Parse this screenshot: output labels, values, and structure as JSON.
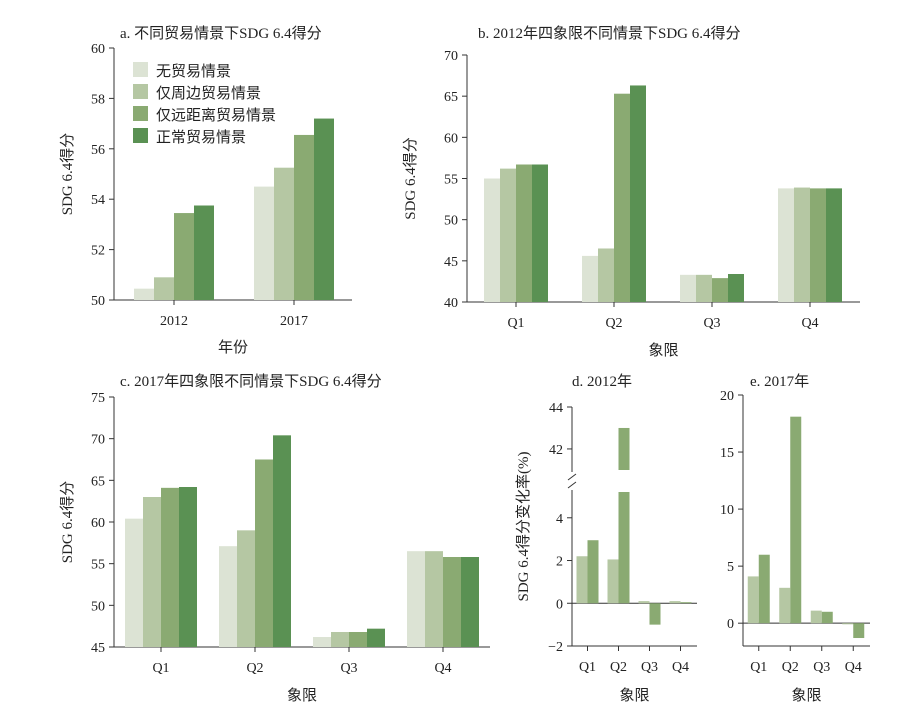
{
  "colors": [
    "#dce3d4",
    "#b5c7a3",
    "#8aaa72",
    "#5a9153"
  ],
  "chart_data": [
    {
      "id": "a",
      "type": "bar",
      "title": "a. 不同贸易情景下SDG 6.4得分",
      "xlabel": "年份",
      "ylabel": "SDG 6.4得分",
      "ylim": [
        50,
        60
      ],
      "yticks": [
        50,
        52,
        54,
        56,
        58,
        60
      ],
      "categories": [
        "2012",
        "2017"
      ],
      "legend": {
        "placement": "top-left",
        "entries": [
          "无贸易情景",
          "仅周边贸易情景",
          "仅远距离贸易情景",
          "正常贸易情景"
        ]
      },
      "series": [
        {
          "name": "无贸易情景",
          "values": [
            50.45,
            54.5
          ]
        },
        {
          "name": "仅周边贸易情景",
          "values": [
            50.9,
            55.25
          ]
        },
        {
          "name": "仅远距离贸易情景",
          "values": [
            53.45,
            56.55
          ]
        },
        {
          "name": "正常贸易情景",
          "values": [
            53.75,
            57.2
          ]
        }
      ]
    },
    {
      "id": "b",
      "type": "bar",
      "title": "b. 2012年四象限不同情景下SDG 6.4得分",
      "xlabel": "象限",
      "ylabel": "SDG 6.4得分",
      "ylim": [
        40,
        70
      ],
      "yticks": [
        40,
        45,
        50,
        55,
        60,
        65,
        70
      ],
      "categories": [
        "Q1",
        "Q2",
        "Q3",
        "Q4"
      ],
      "series": [
        {
          "name": "无贸易情景",
          "values": [
            55.0,
            45.6,
            43.3,
            53.8
          ]
        },
        {
          "name": "仅周边贸易情景",
          "values": [
            56.2,
            46.5,
            43.3,
            53.9
          ]
        },
        {
          "name": "仅远距离贸易情景",
          "values": [
            56.7,
            65.3,
            42.9,
            53.8
          ]
        },
        {
          "name": "正常贸易情景",
          "values": [
            56.7,
            66.3,
            43.4,
            53.8
          ]
        }
      ]
    },
    {
      "id": "c",
      "type": "bar",
      "title": "c. 2017年四象限不同情景下SDG 6.4得分",
      "xlabel": "象限",
      "ylabel": "SDG 6.4得分",
      "ylim": [
        45,
        75
      ],
      "yticks": [
        45,
        50,
        55,
        60,
        65,
        70,
        75
      ],
      "categories": [
        "Q1",
        "Q2",
        "Q3",
        "Q4"
      ],
      "series": [
        {
          "name": "无贸易情景",
          "values": [
            60.4,
            57.1,
            46.2,
            56.5
          ]
        },
        {
          "name": "仅周边贸易情景",
          "values": [
            63.0,
            59.0,
            46.8,
            56.5
          ]
        },
        {
          "name": "仅远距离贸易情景",
          "values": [
            64.1,
            67.5,
            46.8,
            55.8
          ]
        },
        {
          "name": "正常贸易情景",
          "values": [
            64.2,
            70.4,
            47.2,
            55.8
          ]
        }
      ]
    },
    {
      "id": "d",
      "type": "bar",
      "title": "d. 2012年",
      "xlabel": "象限",
      "ylabel": "SDG 6.4得分变化率(%)",
      "ylim": [
        -2,
        44
      ],
      "axis_break": [
        5.3,
        40.9
      ],
      "yticks": [
        -2,
        0,
        2,
        4,
        42,
        44
      ],
      "categories": [
        "Q1",
        "Q2",
        "Q3",
        "Q4"
      ],
      "series": [
        {
          "name": "仅周边贸易情景",
          "values": [
            2.2,
            2.05,
            0.1,
            0.1
          ]
        },
        {
          "name": "仅远距离贸易情景",
          "values": [
            2.95,
            43.0,
            -1.0,
            0.05
          ]
        }
      ]
    },
    {
      "id": "e",
      "type": "bar",
      "title": "e. 2017年",
      "xlabel": "象限",
      "ylabel": "",
      "ylim": [
        -2,
        20
      ],
      "yticks": [
        0,
        5,
        10,
        15,
        20
      ],
      "categories": [
        "Q1",
        "Q2",
        "Q3",
        "Q4"
      ],
      "series": [
        {
          "name": "仅周边贸易情景",
          "values": [
            4.1,
            3.1,
            1.1,
            -0.1
          ]
        },
        {
          "name": "仅远距离贸易情景",
          "values": [
            6.0,
            18.1,
            1.0,
            -1.3
          ]
        }
      ]
    }
  ]
}
